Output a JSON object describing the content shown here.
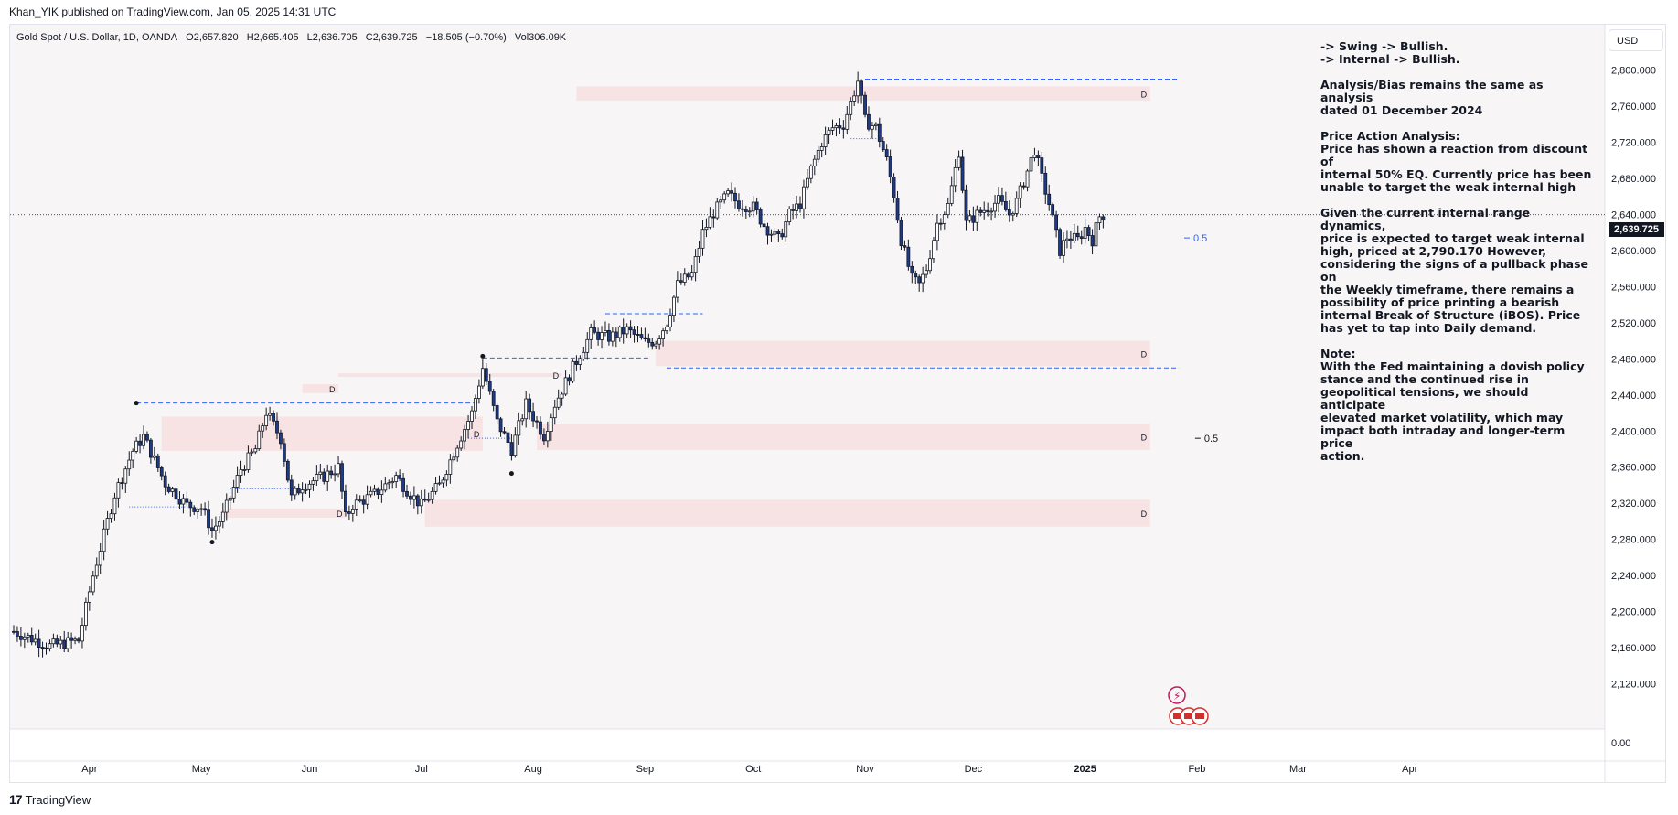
{
  "publisher_line": "Khan_YIK published on TradingView.com, Jan 05, 2025 14:31 UTC",
  "legend": {
    "symbol": "Gold Spot / U.S. Dollar, 1D, OANDA",
    "open": "O2,657.820",
    "high": "H2,665.405",
    "low": "L2,636.705",
    "close": "C2,639.725",
    "change": "−18.505 (−0.70%)",
    "volume": "Vol306.09K"
  },
  "currency": "USD",
  "last_price_label": "2,639.725",
  "logo_text": "TradingView",
  "notes": {
    "bias_lines": [
      "-> Swing -> Bullish.",
      "-> Internal -> Bullish."
    ],
    "analysis_lines": [
      "Analysis/Bias remains the same as analysis",
      "dated 01 December 2024"
    ],
    "price_action_lines": [
      "Price Action Analysis:",
      "Price has shown a reaction from discount of",
      "internal 50% EQ.  Currently price has been",
      "unable to target the weak internal high"
    ],
    "dynamics_lines": [
      "Given the current internal range dynamics,",
      "price is expected to target weak internal",
      "high, priced at 2,790.170  However,",
      "considering the signs of a pullback phase on",
      "the Weekly timeframe, there remains a",
      "possibility of price printing a bearish",
      "internal Break of Structure (iBOS).  Price",
      "has yet to tap into Daily demand."
    ],
    "note_lines": [
      "Note:",
      "With the Fed maintaining a dovish policy",
      "stance and the continued rise in",
      "geopolitical tensions, we should anticipate",
      "elevated market volatility, which may",
      "impact both intraday and longer-term price",
      "action."
    ]
  },
  "chart_data": {
    "type": "candlestick",
    "title": "Gold Spot / U.S. Dollar, 1D, OANDA",
    "ylim": [
      2080,
      2830
    ],
    "y_ticks": [
      "2,800.000",
      "2,760.000",
      "2,720.000",
      "2,680.000",
      "2,640.000",
      "2,600.000",
      "2,560.000",
      "2,520.000",
      "2,480.000",
      "2,440.000",
      "2,400.000",
      "2,360.000",
      "2,320.000",
      "2,280.000",
      "2,240.000",
      "2,200.000",
      "2,160.000",
      "2,120.000"
    ],
    "y_tick_values": [
      2800,
      2760,
      2720,
      2680,
      2640,
      2600,
      2560,
      2520,
      2480,
      2440,
      2400,
      2360,
      2320,
      2280,
      2240,
      2200,
      2160,
      2120
    ],
    "volume_axis_label": "0.00",
    "x_labels": [
      "Apr",
      "May",
      "Jun",
      "Jul",
      "Aug",
      "Sep",
      "Oct",
      "Nov",
      "Dec",
      "2025",
      "Feb",
      "Mar",
      "Apr"
    ],
    "x_label_days": [
      21,
      52,
      82,
      113,
      144,
      175,
      205,
      236,
      266,
      297,
      328,
      356,
      387
    ],
    "start_date": "2024-03-11",
    "last_price": 2639.725,
    "colors": {
      "up": "#ffffff",
      "down": "#1e3a8a",
      "wick": "#131722",
      "zone": "#f7dfe1",
      "level": "#2962ff",
      "background": "#f7f5f6"
    },
    "demand_zones": [
      {
        "d0": 156,
        "d1": 315,
        "p0": 2766,
        "p1": 2782,
        "label": "D"
      },
      {
        "d0": 90,
        "d1": 152,
        "p0": 2460,
        "p1": 2464,
        "label": "D"
      },
      {
        "d0": 80,
        "d1": 90,
        "p0": 2442,
        "p1": 2452,
        "label": "D"
      },
      {
        "d0": 178,
        "d1": 315,
        "p0": 2472,
        "p1": 2500,
        "label": "D"
      },
      {
        "d0": 145,
        "d1": 315,
        "p0": 2379,
        "p1": 2408,
        "label": "D"
      },
      {
        "d0": 41,
        "d1": 130,
        "p0": 2378,
        "p1": 2416,
        "label": "D"
      },
      {
        "d0": 58,
        "d1": 92,
        "p0": 2304,
        "p1": 2314,
        "label": "D"
      },
      {
        "d0": 114,
        "d1": 315,
        "p0": 2294,
        "p1": 2324,
        "label": "D"
      }
    ],
    "levels": [
      {
        "d0": 34,
        "d1": 129,
        "p": 2431,
        "style": "dash"
      },
      {
        "d0": 130,
        "d1": 176,
        "p": 2481,
        "style": "dash"
      },
      {
        "d0": 164,
        "d1": 191,
        "p": 2530,
        "style": "dash"
      },
      {
        "d0": 236,
        "d1": 323,
        "p": 2790,
        "style": "dash"
      },
      {
        "d0": 181,
        "d1": 323,
        "p": 2470,
        "style": "dash"
      },
      {
        "d0": 32,
        "d1": 49,
        "p": 2316,
        "style": "dot"
      },
      {
        "d0": 60,
        "d1": 78,
        "p": 2336,
        "style": "dot"
      },
      {
        "d0": 126,
        "d1": 138,
        "p": 2392,
        "style": "dot"
      },
      {
        "d0": 232,
        "d1": 240,
        "p": 2724,
        "style": "dot"
      }
    ],
    "eq_labels": [
      {
        "d": 327,
        "p": 2614,
        "text": "0.5",
        "color": "#2962ff"
      },
      {
        "d": 330,
        "p": 2392,
        "text": "0.5",
        "color": "#131722"
      }
    ],
    "markers": [
      {
        "d": 34,
        "p": 2431
      },
      {
        "d": 55,
        "p": 2277
      },
      {
        "d": 130,
        "p": 2483
      },
      {
        "d": 138,
        "p": 2353
      }
    ],
    "anchors": [
      {
        "d": 0,
        "p": 2178
      },
      {
        "d": 10,
        "p": 2162
      },
      {
        "d": 18,
        "p": 2168
      },
      {
        "d": 22,
        "p": 2240
      },
      {
        "d": 28,
        "p": 2330
      },
      {
        "d": 33,
        "p": 2378
      },
      {
        "d": 36,
        "p": 2394
      },
      {
        "d": 42,
        "p": 2342
      },
      {
        "d": 45,
        "p": 2330
      },
      {
        "d": 48,
        "p": 2318
      },
      {
        "d": 52,
        "p": 2315
      },
      {
        "d": 55,
        "p": 2290
      },
      {
        "d": 58,
        "p": 2306
      },
      {
        "d": 63,
        "p": 2358
      },
      {
        "d": 67,
        "p": 2380
      },
      {
        "d": 70,
        "p": 2421
      },
      {
        "d": 74,
        "p": 2392
      },
      {
        "d": 77,
        "p": 2326
      },
      {
        "d": 80,
        "p": 2340
      },
      {
        "d": 86,
        "p": 2350
      },
      {
        "d": 90,
        "p": 2360
      },
      {
        "d": 92,
        "p": 2304
      },
      {
        "d": 94,
        "p": 2318
      },
      {
        "d": 100,
        "p": 2330
      },
      {
        "d": 106,
        "p": 2350
      },
      {
        "d": 110,
        "p": 2330
      },
      {
        "d": 113,
        "p": 2318
      },
      {
        "d": 118,
        "p": 2340
      },
      {
        "d": 123,
        "p": 2386
      },
      {
        "d": 127,
        "p": 2420
      },
      {
        "d": 130,
        "p": 2470
      },
      {
        "d": 134,
        "p": 2410
      },
      {
        "d": 138,
        "p": 2380
      },
      {
        "d": 142,
        "p": 2430
      },
      {
        "d": 147,
        "p": 2395
      },
      {
        "d": 150,
        "p": 2430
      },
      {
        "d": 155,
        "p": 2470
      },
      {
        "d": 160,
        "p": 2508
      },
      {
        "d": 165,
        "p": 2504
      },
      {
        "d": 170,
        "p": 2512
      },
      {
        "d": 175,
        "p": 2498
      },
      {
        "d": 178,
        "p": 2500
      },
      {
        "d": 181,
        "p": 2520
      },
      {
        "d": 184,
        "p": 2562
      },
      {
        "d": 188,
        "p": 2574
      },
      {
        "d": 191,
        "p": 2620
      },
      {
        "d": 194,
        "p": 2642
      },
      {
        "d": 198,
        "p": 2662
      },
      {
        "d": 201,
        "p": 2652
      },
      {
        "d": 205,
        "p": 2648
      },
      {
        "d": 208,
        "p": 2628
      },
      {
        "d": 212,
        "p": 2612
      },
      {
        "d": 215,
        "p": 2640
      },
      {
        "d": 218,
        "p": 2652
      },
      {
        "d": 221,
        "p": 2690
      },
      {
        "d": 224,
        "p": 2720
      },
      {
        "d": 227,
        "p": 2736
      },
      {
        "d": 230,
        "p": 2740
      },
      {
        "d": 233,
        "p": 2776
      },
      {
        "d": 234,
        "p": 2788
      },
      {
        "d": 236,
        "p": 2744
      },
      {
        "d": 239,
        "p": 2736
      },
      {
        "d": 242,
        "p": 2700
      },
      {
        "d": 244,
        "p": 2662
      },
      {
        "d": 246,
        "p": 2612
      },
      {
        "d": 249,
        "p": 2568
      },
      {
        "d": 251,
        "p": 2562
      },
      {
        "d": 253,
        "p": 2580
      },
      {
        "d": 256,
        "p": 2630
      },
      {
        "d": 259,
        "p": 2650
      },
      {
        "d": 262,
        "p": 2710
      },
      {
        "d": 264,
        "p": 2630
      },
      {
        "d": 267,
        "p": 2640
      },
      {
        "d": 270,
        "p": 2648
      },
      {
        "d": 273,
        "p": 2655
      },
      {
        "d": 276,
        "p": 2640
      },
      {
        "d": 278,
        "p": 2654
      },
      {
        "d": 281,
        "p": 2688
      },
      {
        "d": 283,
        "p": 2712
      },
      {
        "d": 285,
        "p": 2680
      },
      {
        "d": 287,
        "p": 2652
      },
      {
        "d": 290,
        "p": 2600
      },
      {
        "d": 292,
        "p": 2615
      },
      {
        "d": 295,
        "p": 2612
      },
      {
        "d": 297,
        "p": 2625
      },
      {
        "d": 299,
        "p": 2612
      },
      {
        "d": 301,
        "p": 2638
      },
      {
        "d": 302,
        "p": 2639.7
      }
    ]
  }
}
